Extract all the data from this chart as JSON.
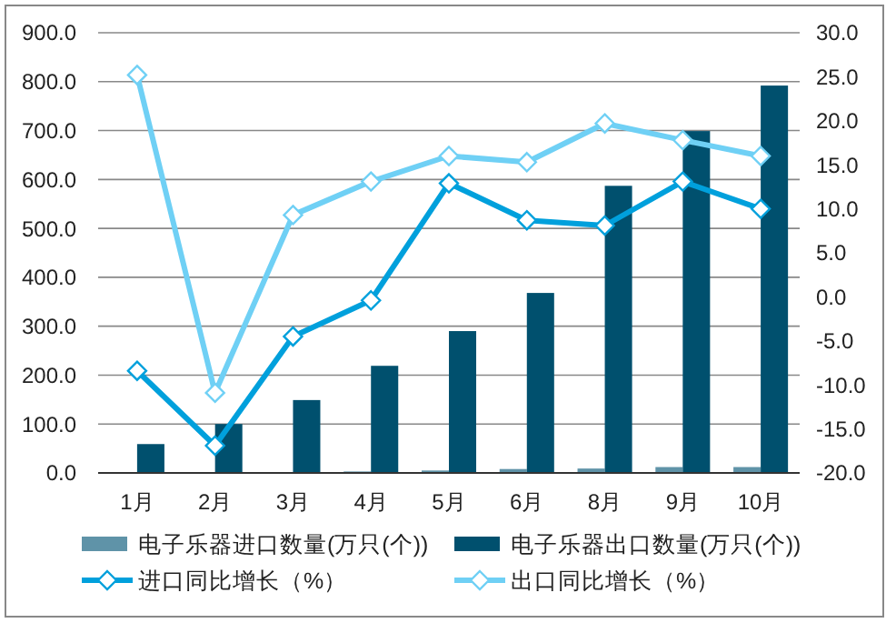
{
  "chart_data": {
    "type": "bar",
    "categories": [
      "1月",
      "2月",
      "3月",
      "4月",
      "5月",
      "6月",
      "8月",
      "9月",
      "10月"
    ],
    "series": [
      {
        "name": "电子乐器进口数量(万只(个))",
        "color": "#5f93a8",
        "values": [
          0,
          0,
          1,
          3,
          5,
          8,
          9,
          12,
          12
        ]
      },
      {
        "name": "电子乐器出口数量(万只(个))",
        "color": "#00506e",
        "values": [
          59,
          100,
          149,
          219,
          290,
          368,
          587,
          699,
          792
        ]
      },
      {
        "name": "进口同比增长（%）",
        "type": "line",
        "axis": "y2",
        "color": "#00a0dc",
        "marker": "diamond",
        "values": [
          -8.4,
          -16.9,
          -4.5,
          -0.4,
          12.9,
          8.7,
          8.1,
          13.1,
          10.0
        ]
      },
      {
        "name": "出口同比增长（%）",
        "type": "line",
        "axis": "y2",
        "color": "#6fd0f5",
        "marker": "diamond",
        "values": [
          25.2,
          -10.9,
          9.3,
          13.1,
          16.0,
          15.3,
          19.7,
          17.8,
          16.0
        ]
      }
    ],
    "ylim": [
      0,
      900
    ],
    "yticks": [
      {
        "value": 0,
        "label": "0.0"
      },
      {
        "value": 100,
        "label": "100.0"
      },
      {
        "value": 200,
        "label": "200.0"
      },
      {
        "value": 300,
        "label": "300.0"
      },
      {
        "value": 400,
        "label": "400.0"
      },
      {
        "value": 500,
        "label": "500.0"
      },
      {
        "value": 600,
        "label": "600.0"
      },
      {
        "value": 700,
        "label": "700.0"
      },
      {
        "value": 800,
        "label": "800.0"
      },
      {
        "value": 900,
        "label": "900.0"
      }
    ],
    "y2lim": [
      -20,
      30
    ],
    "y2ticks": [
      {
        "value": -20,
        "label": "-20.0"
      },
      {
        "value": -15,
        "label": "-15.0"
      },
      {
        "value": -10,
        "label": "-10.0"
      },
      {
        "value": -5,
        "label": "-5.0"
      },
      {
        "value": 0,
        "label": "0.0"
      },
      {
        "value": 5,
        "label": "5.0"
      },
      {
        "value": 10,
        "label": "10.0"
      },
      {
        "value": 15,
        "label": "15.0"
      },
      {
        "value": 20,
        "label": "20.0"
      },
      {
        "value": 25,
        "label": "25.0"
      },
      {
        "value": 30,
        "label": "30.0"
      }
    ],
    "grid": "y",
    "legend": "bottom"
  }
}
